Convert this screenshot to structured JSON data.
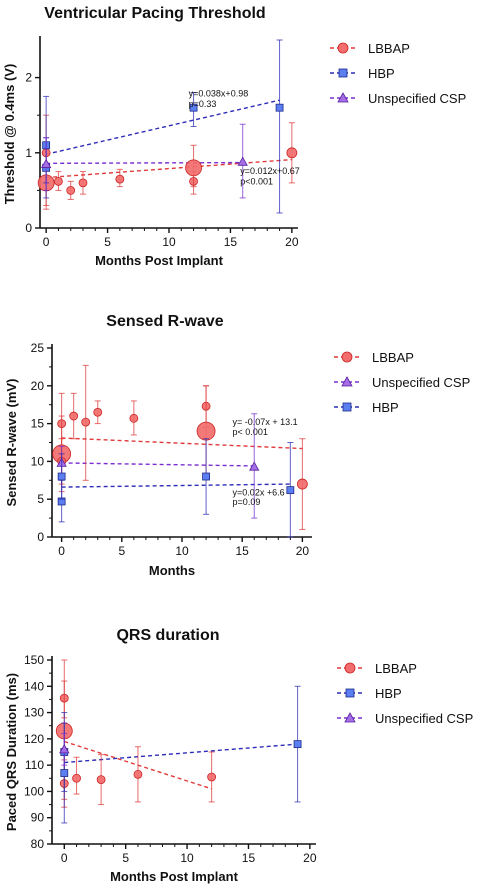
{
  "chart_data": [
    {
      "type": "scatter",
      "title": "Ventricular Pacing Threshold",
      "xlabel": "Months Post Implant",
      "ylabel": "Threshold @ 0.4ms (V)",
      "xlim": [
        -0.5,
        20.5
      ],
      "ylim": [
        0,
        2.5
      ],
      "xticks": [
        0,
        5,
        10,
        15,
        20
      ],
      "yticks": [
        0,
        1,
        2
      ],
      "legend_position": "right",
      "series": [
        {
          "name": "LBBAP",
          "marker": "circle",
          "color": "#f26d6d",
          "line_color": "#e03a3a",
          "points": [
            {
              "x": 0,
              "y": 1.0,
              "lo": 0.3,
              "hi": 1.5,
              "r": 4
            },
            {
              "x": 0,
              "y": 0.6,
              "lo": 0.25,
              "hi": 1.1,
              "r": 8
            },
            {
              "x": 1,
              "y": 0.62,
              "lo": 0.5,
              "hi": 0.75,
              "r": 4
            },
            {
              "x": 2,
              "y": 0.5,
              "lo": 0.38,
              "hi": 0.62,
              "r": 4
            },
            {
              "x": 3,
              "y": 0.6,
              "lo": 0.45,
              "hi": 0.75,
              "r": 4
            },
            {
              "x": 6,
              "y": 0.65,
              "lo": 0.55,
              "hi": 0.78,
              "r": 4
            },
            {
              "x": 12,
              "y": 0.62,
              "lo": 0.45,
              "hi": 0.75,
              "r": 4
            },
            {
              "x": 12,
              "y": 0.8,
              "lo": 0.55,
              "hi": 1.1,
              "r": 8
            },
            {
              "x": 20,
              "y": 1.0,
              "lo": 0.6,
              "hi": 1.4,
              "r": 5
            }
          ],
          "fit": {
            "x1": 0,
            "y1": 0.67,
            "x2": 20,
            "y2": 0.91
          }
        },
        {
          "name": "HBP",
          "marker": "square",
          "color": "#5b7ff0",
          "line_color": "#2d2db8",
          "points": [
            {
              "x": 0,
              "y": 1.1,
              "lo": 0.6,
              "hi": 1.75
            },
            {
              "x": 0,
              "y": 0.8,
              "lo": 0.4,
              "hi": 1.2
            },
            {
              "x": 12,
              "y": 1.6,
              "lo": 1.35,
              "hi": 1.8
            },
            {
              "x": 19,
              "y": 1.6,
              "lo": 0.2,
              "hi": 2.5
            }
          ],
          "fit": {
            "x1": 0,
            "y1": 0.98,
            "x2": 19,
            "y2": 1.7
          }
        },
        {
          "name": "Unspecified CSP",
          "marker": "triangle",
          "color": "#a46ee6",
          "line_color": "#7a2ed1",
          "points": [
            {
              "x": 0,
              "y": 0.85,
              "lo": 0.5,
              "hi": 1.2
            },
            {
              "x": 16,
              "y": 0.88,
              "lo": 0.4,
              "hi": 1.38
            }
          ],
          "fit": {
            "x1": 0,
            "y1": 0.86,
            "x2": 16,
            "y2": 0.87
          }
        }
      ],
      "annotations": [
        {
          "text": "y=0.038x+0.98",
          "x": 11.6,
          "y": 1.75
        },
        {
          "text": "p=0.33",
          "x": 11.6,
          "y": 1.61
        },
        {
          "text": "y=0.012x+0.67",
          "x": 15.8,
          "y": 0.72
        },
        {
          "text": "p<0.001",
          "x": 15.8,
          "y": 0.58
        }
      ]
    },
    {
      "type": "scatter",
      "title": "Sensed R-wave",
      "xlabel": "Months",
      "ylabel": "Sensed R-wave (mV)",
      "xlim": [
        -0.8,
        20.8
      ],
      "ylim": [
        0,
        25
      ],
      "xticks": [
        0,
        5,
        10,
        15,
        20
      ],
      "yticks": [
        0,
        5,
        10,
        15,
        20,
        25
      ],
      "legend_position": "right",
      "series": [
        {
          "name": "LBBAP",
          "marker": "circle",
          "color": "#f26d6d",
          "line_color": "#e03a3a",
          "points": [
            {
              "x": 0,
              "y": 15.0,
              "lo": 11,
              "hi": 19,
              "r": 4
            },
            {
              "x": 0,
              "y": 11.0,
              "lo": 6,
              "hi": 16,
              "r": 9
            },
            {
              "x": 0,
              "y": 10.0,
              "lo": 7,
              "hi": 13,
              "r": 4
            },
            {
              "x": 1,
              "y": 16.0,
              "lo": 13,
              "hi": 19,
              "r": 4
            },
            {
              "x": 2,
              "y": 15.2,
              "lo": 7.5,
              "hi": 22.7,
              "r": 4
            },
            {
              "x": 3,
              "y": 16.5,
              "lo": 15,
              "hi": 18,
              "r": 4
            },
            {
              "x": 6,
              "y": 15.7,
              "lo": 13.5,
              "hi": 18,
              "r": 4
            },
            {
              "x": 12,
              "y": 17.3,
              "lo": 14.5,
              "hi": 20,
              "r": 4
            },
            {
              "x": 12,
              "y": 14.0,
              "lo": 8,
              "hi": 20,
              "r": 9
            },
            {
              "x": 20,
              "y": 7.0,
              "lo": 1,
              "hi": 13,
              "r": 5
            }
          ],
          "fit": {
            "x1": 0,
            "y1": 13.1,
            "x2": 20,
            "y2": 11.7
          }
        },
        {
          "name": "Unspecified CSP",
          "marker": "triangle",
          "color": "#a46ee6",
          "line_color": "#7a2ed1",
          "points": [
            {
              "x": 0,
              "y": 9.8,
              "lo": 8,
              "hi": 12
            },
            {
              "x": 16,
              "y": 9.3,
              "lo": 2.5,
              "hi": 16.3
            }
          ],
          "fit": {
            "x1": 0,
            "y1": 9.8,
            "x2": 16,
            "y2": 9.4
          }
        },
        {
          "name": "HBP",
          "marker": "square",
          "color": "#5b7ff0",
          "line_color": "#2d2db8",
          "points": [
            {
              "x": 0,
              "y": 4.7,
              "lo": 2,
              "hi": 7.5
            },
            {
              "x": 0,
              "y": 8.0,
              "lo": 5,
              "hi": 11
            },
            {
              "x": 12,
              "y": 8.0,
              "lo": 3,
              "hi": 13
            },
            {
              "x": 19,
              "y": 6.2,
              "lo": 0,
              "hi": 12.5
            }
          ],
          "fit": {
            "x1": 0,
            "y1": 6.6,
            "x2": 19,
            "y2": 7.0
          }
        }
      ],
      "annotations": [
        {
          "text": "y= -0.07x + 13.1",
          "x": 14.2,
          "y": 14.8
        },
        {
          "text": "p< 0.001",
          "x": 14.2,
          "y": 13.5
        },
        {
          "text": "y=0.02x +6.6",
          "x": 14.2,
          "y": 5.5
        },
        {
          "text": "p=0.09",
          "x": 14.2,
          "y": 4.2
        }
      ]
    },
    {
      "type": "scatter",
      "title": "QRS duration",
      "xlabel": "Months Post Implant",
      "ylabel": "Paced QRS Duration (ms)",
      "xlim": [
        -1,
        20.5
      ],
      "ylim": [
        80,
        150
      ],
      "xticks": [
        0,
        5,
        10,
        15,
        20
      ],
      "yticks": [
        80,
        90,
        100,
        110,
        120,
        130,
        140,
        150
      ],
      "legend_position": "right",
      "series": [
        {
          "name": "LBBAP",
          "marker": "circle",
          "color": "#f26d6d",
          "line_color": "#e03a3a",
          "points": [
            {
              "x": 0,
              "y": 135.5,
              "lo": 128,
              "hi": 142,
              "r": 4
            },
            {
              "x": 0,
              "y": 123.0,
              "lo": 97,
              "hi": 150,
              "r": 8
            },
            {
              "x": 0,
              "y": 103.0,
              "lo": 94,
              "hi": 112,
              "r": 4
            },
            {
              "x": 1,
              "y": 105.0,
              "lo": 99,
              "hi": 113,
              "r": 4
            },
            {
              "x": 3,
              "y": 104.5,
              "lo": 95,
              "hi": 114,
              "r": 4
            },
            {
              "x": 6,
              "y": 106.5,
              "lo": 96,
              "hi": 117,
              "r": 4
            },
            {
              "x": 12,
              "y": 105.5,
              "lo": 96,
              "hi": 115,
              "r": 4
            }
          ],
          "fit": {
            "x1": 0,
            "y1": 119,
            "x2": 12,
            "y2": 101
          }
        },
        {
          "name": "HBP",
          "marker": "square",
          "color": "#5b7ff0",
          "line_color": "#2d2db8",
          "points": [
            {
              "x": 0,
              "y": 115.0,
              "lo": 100,
              "hi": 130
            },
            {
              "x": 0,
              "y": 107.0,
              "lo": 88,
              "hi": 126
            },
            {
              "x": 19,
              "y": 118.0,
              "lo": 96,
              "hi": 140
            }
          ],
          "fit": {
            "x1": 0,
            "y1": 111,
            "x2": 19,
            "y2": 118
          }
        },
        {
          "name": "Unspecified CSP",
          "marker": "triangle",
          "color": "#a46ee6",
          "line_color": "#7a2ed1",
          "points": [
            {
              "x": 0,
              "y": 116.0,
              "lo": 110,
              "hi": 122
            }
          ],
          "fit": null
        }
      ],
      "annotations": []
    }
  ]
}
